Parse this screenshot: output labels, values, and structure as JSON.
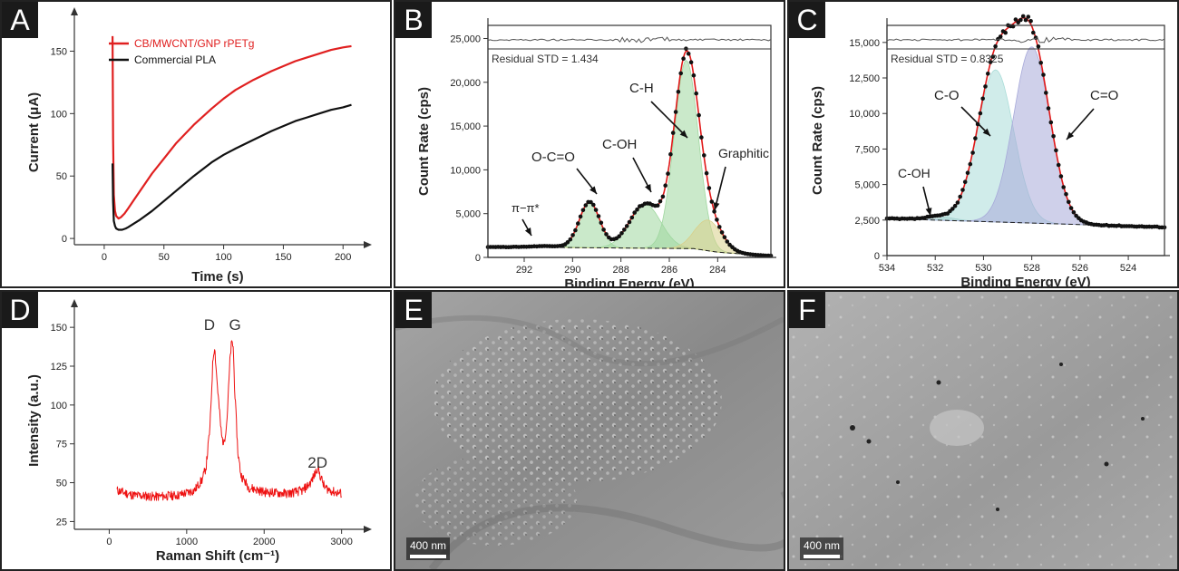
{
  "panels": {
    "A": {
      "letter": "A"
    },
    "B": {
      "letter": "B"
    },
    "C": {
      "letter": "C"
    },
    "D": {
      "letter": "D"
    },
    "E": {
      "letter": "E",
      "scale_label": "400 nm"
    },
    "F": {
      "letter": "F",
      "scale_label": "400 nm"
    }
  },
  "chart_data": [
    {
      "panel": "A",
      "type": "line",
      "xlabel": "Time (s)",
      "ylabel": "Current (μA)",
      "xlim": [
        -25,
        215
      ],
      "ylim": [
        -5,
        175
      ],
      "xticks": [
        0,
        50,
        100,
        150,
        200
      ],
      "yticks": [
        0,
        50,
        100,
        150
      ],
      "legend": "top-left",
      "series": [
        {
          "name": "CB/MWCNT/GNP rPETg",
          "color": "#e02020",
          "x": [
            7,
            7.4,
            8,
            9,
            10,
            12,
            14,
            17,
            20,
            25,
            30,
            40,
            50,
            60,
            75,
            90,
            100,
            110,
            125,
            140,
            150,
            160,
            170,
            180,
            190,
            200,
            207
          ],
          "y": [
            162,
            80,
            35,
            22,
            18,
            16,
            17,
            20,
            24,
            31,
            38,
            52,
            64,
            76,
            91,
            104,
            112,
            119,
            127,
            134,
            138,
            142,
            145,
            148,
            151,
            153,
            154
          ]
        },
        {
          "name": "Commercial PLA",
          "color": "#111111",
          "x": [
            7,
            7.4,
            8,
            9,
            10,
            12,
            15,
            18,
            20,
            25,
            30,
            40,
            50,
            60,
            75,
            90,
            100,
            110,
            125,
            140,
            150,
            160,
            170,
            180,
            190,
            200,
            207
          ],
          "y": [
            60,
            30,
            14,
            10,
            8,
            7,
            7,
            8,
            9,
            12,
            15,
            22,
            30,
            38,
            50,
            61,
            67,
            72,
            79,
            86,
            90,
            94,
            97,
            100,
            103,
            105,
            107
          ]
        }
      ]
    },
    {
      "panel": "B",
      "type": "line",
      "xlabel": "Binding Energy (eV)",
      "ylabel": "Count Rate (cps)",
      "xlim": [
        293.5,
        281.8
      ],
      "ylim": [
        0,
        26500
      ],
      "xticks": [
        292,
        290,
        288,
        286,
        284
      ],
      "yticks": [
        0,
        5000,
        10000,
        15000,
        20000,
        25000
      ],
      "ytick_labels": [
        "0",
        "5,000",
        "10,000",
        "15,000",
        "20,000",
        "25,000"
      ],
      "residual_text": "Residual STD = 1.434",
      "baseline": {
        "x": [
          293.5,
          285,
          284,
          282
        ],
        "y": [
          1200,
          1000,
          600,
          200
        ]
      },
      "peaks": [
        {
          "label": "π–π*",
          "center": 291,
          "height": 150,
          "sigma": 0.7,
          "color": "#9fd79f"
        },
        {
          "label": "O-C=O",
          "center": 289.3,
          "height": 5200,
          "sigma": 0.42,
          "color": "#9fd79f"
        },
        {
          "label": "C-OH",
          "center": 287.0,
          "height": 5000,
          "sigma": 0.65,
          "color": "#9fd79f"
        },
        {
          "label": "C-H",
          "center": 285.3,
          "height": 21500,
          "sigma": 0.5,
          "color": "#9fd79f"
        },
        {
          "label": "Graphitic",
          "center": 284.4,
          "height": 3500,
          "sigma": 0.55,
          "color": "#d8cf8a"
        }
      ],
      "annotations": [
        "π−π*",
        "O-C=O",
        "C-OH",
        "C-H",
        "Graphitic"
      ]
    },
    {
      "panel": "C",
      "type": "line",
      "xlabel": "Binding Energy (eV)",
      "ylabel": "Count Rate (cps)",
      "xlim": [
        534,
        522.5
      ],
      "ylim": [
        0,
        16200
      ],
      "xticks": [
        534,
        532,
        530,
        528,
        526,
        524
      ],
      "yticks": [
        0,
        2500,
        5000,
        7500,
        10000,
        12500,
        15000
      ],
      "ytick_labels": [
        "0",
        "2,500",
        "5,000",
        "7,500",
        "10,000",
        "12,500",
        "15,000"
      ],
      "residual_text": "Residual STD = 0.8325",
      "baseline": {
        "x": [
          534,
          522.5
        ],
        "y": [
          2600,
          2000
        ]
      },
      "peaks": [
        {
          "label": "C-OH",
          "center": 531.8,
          "height": 250,
          "sigma": 0.6,
          "color": "#9fc7c7"
        },
        {
          "label": "C-O",
          "center": 529.5,
          "height": 10700,
          "sigma": 0.75,
          "color": "#a9dcd8"
        },
        {
          "label": "C=O",
          "center": 528.0,
          "height": 12400,
          "sigma": 0.75,
          "color": "#a7a9d9"
        }
      ],
      "annotations": [
        "C-OH",
        "C-O",
        "C=O"
      ]
    },
    {
      "panel": "D",
      "type": "line",
      "xlabel": "Raman Shift (cm⁻¹)",
      "ylabel": "Intensity (a.u.)",
      "xlim": [
        -450,
        3250
      ],
      "ylim": [
        20,
        160
      ],
      "xticks": [
        0,
        1000,
        2000,
        3000
      ],
      "yticks": [
        25,
        50,
        75,
        100,
        125,
        150
      ],
      "series": [
        {
          "color": "#ee1111",
          "x": [
            100,
            300,
            600,
            900,
            1100,
            1200,
            1250,
            1300,
            1340,
            1360,
            1400,
            1450,
            1480,
            1520,
            1560,
            1580,
            1600,
            1620,
            1660,
            1700,
            1800,
            2000,
            2300,
            2500,
            2600,
            2660,
            2690,
            2720,
            2780,
            2900,
            3000
          ],
          "y": [
            45,
            42,
            41,
            42,
            45,
            52,
            60,
            85,
            130,
            138,
            110,
            80,
            75,
            90,
            130,
            140,
            138,
            110,
            70,
            55,
            47,
            44,
            43,
            45,
            50,
            56,
            60,
            55,
            47,
            44,
            43
          ]
        }
      ],
      "annotations": [
        "D",
        "G",
        "2D"
      ]
    }
  ]
}
